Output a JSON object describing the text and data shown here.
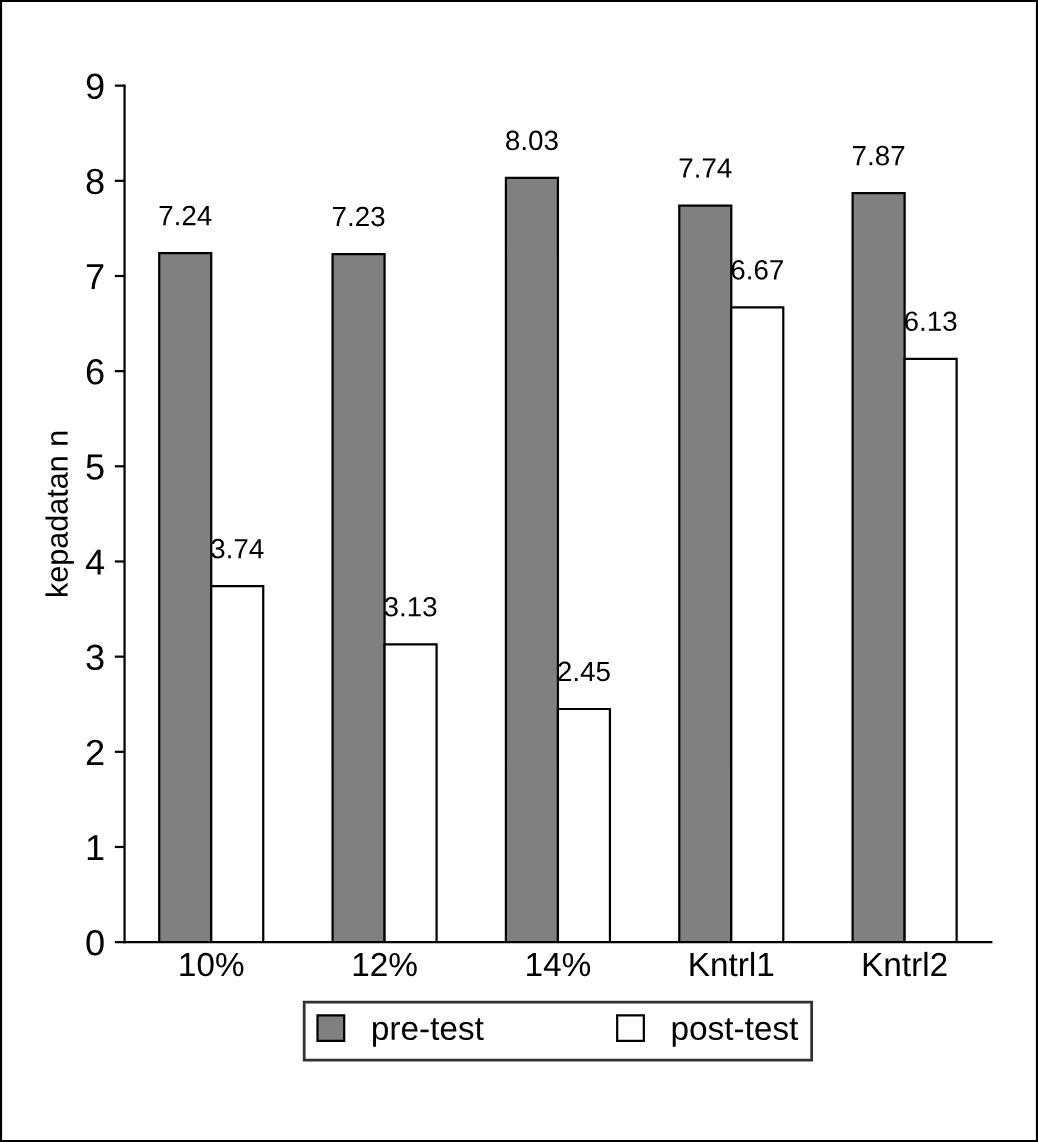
{
  "chart_data": {
    "type": "bar",
    "ylabel": "kepadatan n",
    "categories": [
      "10%",
      "12%",
      "14%",
      "Kntrl1",
      "Kntrl2"
    ],
    "series": [
      {
        "name": "pre-test",
        "color": "#808080",
        "values": [
          7.24,
          7.23,
          8.03,
          7.74,
          7.87
        ]
      },
      {
        "name": "post-test",
        "color": "#ffffff",
        "values": [
          3.74,
          3.13,
          2.45,
          6.67,
          6.13
        ]
      }
    ],
    "ylim": [
      0,
      9
    ],
    "yticks": [
      0,
      1,
      2,
      3,
      4,
      5,
      6,
      7,
      8,
      9
    ],
    "data_labels": true,
    "grid": false,
    "legend": "bottom"
  }
}
